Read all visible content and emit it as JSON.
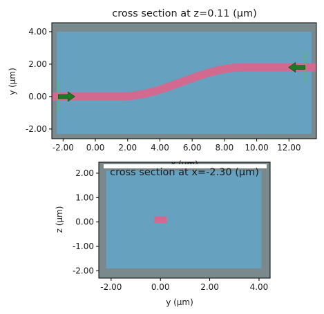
{
  "chart_data": [
    {
      "type": "heatmap",
      "title": "cross section at z=0.11 (μm)",
      "xlabel": "x (μm)",
      "ylabel": "y (μm)",
      "xlim": [
        -2.7,
        13.7
      ],
      "ylim": [
        -2.6,
        4.55
      ],
      "xticks": [
        -2,
        0,
        2,
        4,
        6,
        8,
        10,
        12
      ],
      "xtick_labels": [
        "-2.00",
        "0.00",
        "2.00",
        "4.00",
        "6.00",
        "8.00",
        "10.00",
        "12.00"
      ],
      "yticks": [
        -2,
        0,
        2,
        4
      ],
      "ytick_labels": [
        "-2.00",
        "0.00",
        "2.00",
        "4.00"
      ],
      "colors": {
        "pml": "#7a8a8c",
        "domain": "#66a1c0",
        "waveguide": "#d2698f",
        "source": "#1d7a24",
        "monitor": "#4dc05a"
      },
      "domain_box": {
        "x": [
          -2.4,
          13.4
        ],
        "y": [
          -2.3,
          4.0
        ]
      },
      "waveguide": {
        "width": 0.5,
        "x_start": -2.7,
        "x_end": 13.7,
        "y_start": 0.0,
        "y_end": 1.8,
        "bend_x": [
          1.5,
          9.2
        ]
      },
      "sources": [
        {
          "x": -2.3,
          "y": 0.0,
          "direction": "+x"
        },
        {
          "x": 13.0,
          "y": 1.8,
          "direction": "-x"
        }
      ]
    },
    {
      "type": "heatmap",
      "title": "cross section at x=-2.30 (μm)",
      "xlabel": "y (μm)",
      "ylabel": "z (μm)",
      "xlim": [
        -2.5,
        4.45
      ],
      "ylim": [
        -2.3,
        2.45
      ],
      "xticks": [
        -2,
        0,
        2,
        4
      ],
      "xtick_labels": [
        "-2.00",
        "0.00",
        "2.00",
        "4.00"
      ],
      "yticks": [
        -2,
        -1,
        0,
        1,
        2
      ],
      "ytick_labels": [
        "-2.00",
        "-1.00",
        "0.00",
        "1.00",
        "2.00"
      ],
      "colors": {
        "pml": "#7a8a8c",
        "domain": "#66a1c0",
        "waveguide": "#d2698f"
      },
      "domain_box": {
        "x": [
          -2.2,
          4.1
        ],
        "y": [
          -1.9,
          2.1
        ]
      },
      "waveguide": {
        "x": [
          -0.25,
          0.25
        ],
        "y": [
          -0.05,
          0.22
        ]
      }
    }
  ]
}
